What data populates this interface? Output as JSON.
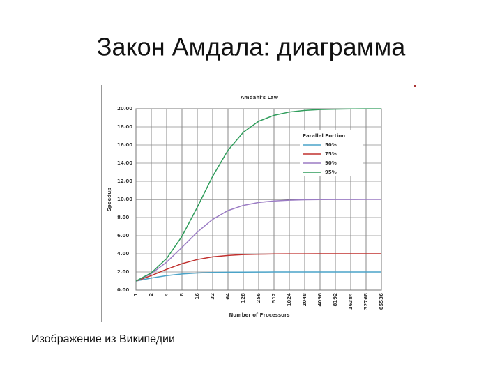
{
  "slide": {
    "title": "Закон Амдала: диаграмма",
    "caption": "Изображение из Википедии"
  },
  "chart_data": {
    "type": "line",
    "title": "Amdahl's Law",
    "x_label": "Number of Processors",
    "y_label": "Speedup",
    "categories": [
      "1",
      "2",
      "4",
      "8",
      "16",
      "32",
      "64",
      "128",
      "256",
      "512",
      "1024",
      "2048",
      "4096",
      "8192",
      "16384",
      "32768",
      "65536"
    ],
    "ylim": [
      0,
      20
    ],
    "yticks": [
      {
        "value": 0,
        "label": "0.00"
      },
      {
        "value": 2,
        "label": "2.00"
      },
      {
        "value": 4,
        "label": "4.00"
      },
      {
        "value": 6,
        "label": "6.00"
      },
      {
        "value": 8,
        "label": "8.00"
      },
      {
        "value": 10,
        "label": "10.00"
      },
      {
        "value": 12,
        "label": "12.00"
      },
      {
        "value": 14,
        "label": "14.00"
      },
      {
        "value": 16,
        "label": "16.00"
      },
      {
        "value": 18,
        "label": "18.00"
      },
      {
        "value": 20,
        "label": "20.00"
      }
    ],
    "grid": true,
    "legend": "upper right",
    "legend_title": "Parallel Portion",
    "series": [
      {
        "name": "50%",
        "color": "#4aa3c8",
        "values": [
          1,
          1.33,
          1.6,
          1.78,
          1.88,
          1.94,
          1.97,
          1.98,
          1.99,
          2.0,
          2.0,
          2.0,
          2.0,
          2.0,
          2.0,
          2.0,
          2.0
        ]
      },
      {
        "name": "75%",
        "color": "#c0302e",
        "values": [
          1,
          1.6,
          2.29,
          2.91,
          3.37,
          3.66,
          3.82,
          3.91,
          3.95,
          3.98,
          3.99,
          3.99,
          4.0,
          4.0,
          4.0,
          4.0,
          4.0
        ]
      },
      {
        "name": "90%",
        "color": "#9b7cc4",
        "values": [
          1,
          1.82,
          3.08,
          4.71,
          6.4,
          7.8,
          8.77,
          9.34,
          9.66,
          9.83,
          9.91,
          9.96,
          9.98,
          9.99,
          9.99,
          10.0,
          10.0
        ]
      },
      {
        "name": "95%",
        "color": "#2e9c5a",
        "values": [
          1,
          1.9,
          3.48,
          5.93,
          9.14,
          12.55,
          15.42,
          17.41,
          18.62,
          19.28,
          19.64,
          19.82,
          19.91,
          19.95,
          19.98,
          19.99,
          19.99
        ]
      }
    ]
  }
}
